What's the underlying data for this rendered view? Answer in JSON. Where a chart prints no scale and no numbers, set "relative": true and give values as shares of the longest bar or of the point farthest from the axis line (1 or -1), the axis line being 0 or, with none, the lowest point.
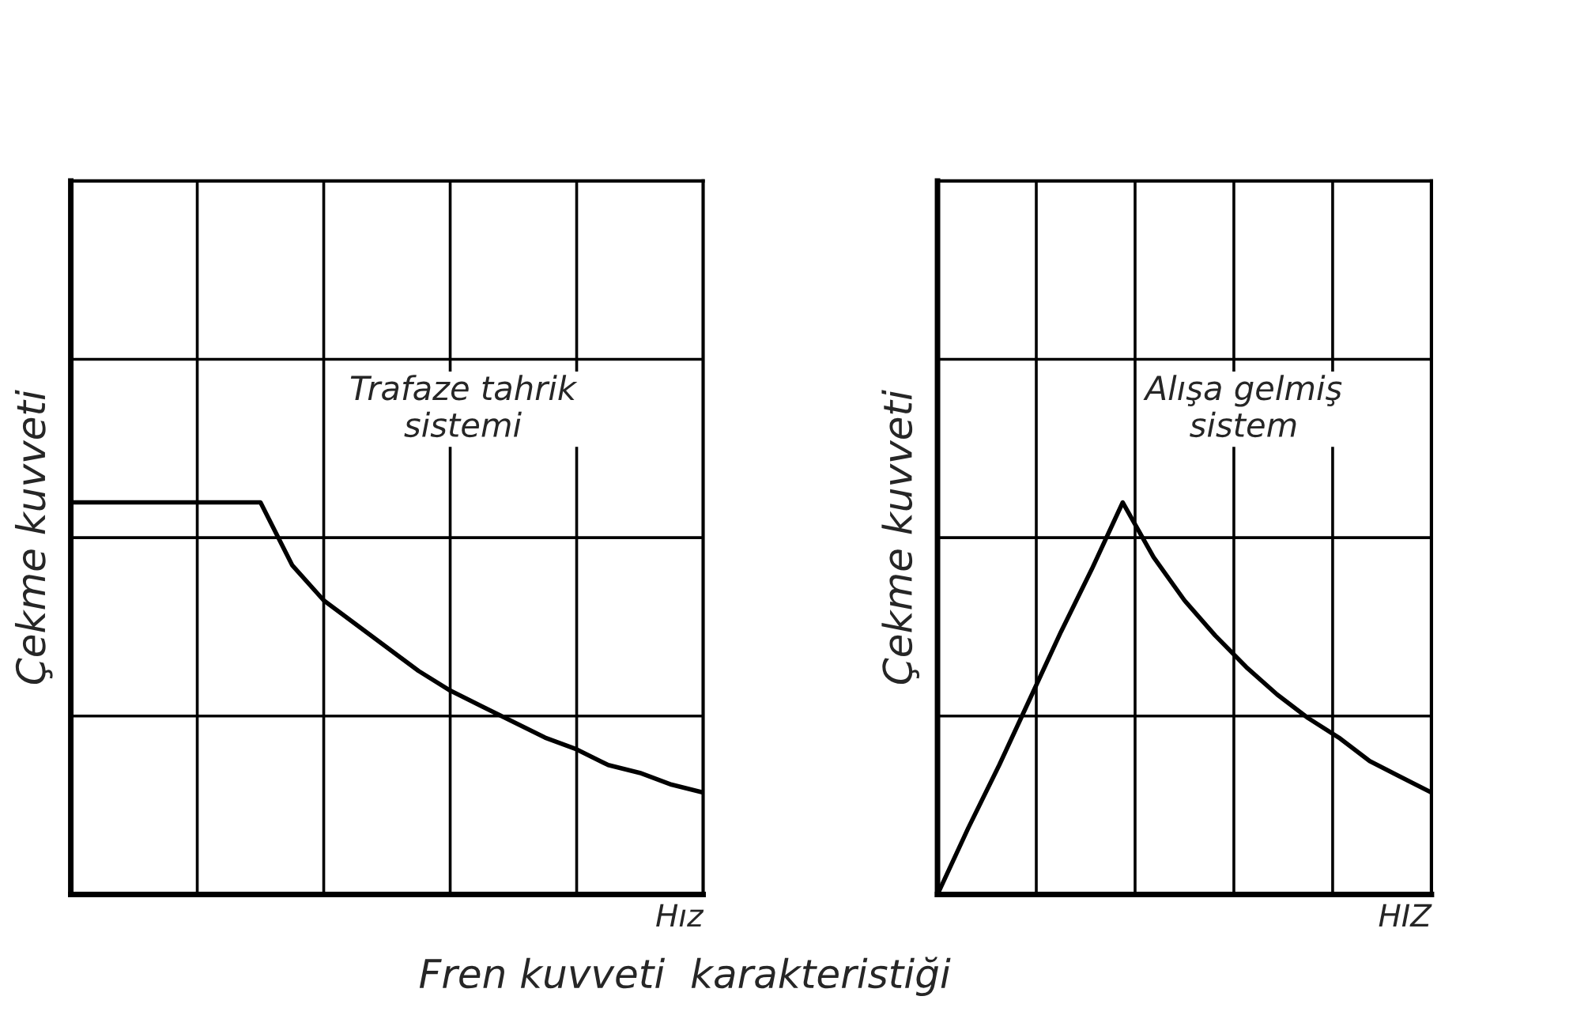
{
  "chart_data": [
    {
      "type": "line",
      "relative": true,
      "ylabel": "Çekme kuvveti",
      "xlabel": "Hız",
      "grid": true,
      "annotations": [
        "Trafaze tahrik\nsistemi",
        "Fren kuvveti  karakteristiği"
      ],
      "categories": [
        null,
        null,
        null,
        null,
        null,
        null,
        null,
        null,
        null,
        null,
        null,
        null,
        null,
        null,
        null,
        null,
        null,
        null,
        null,
        null,
        null
      ],
      "series": [
        {
          "color": "#000000",
          "values": [
            1.0,
            1.0,
            1.0,
            1.0,
            1.0,
            1.0,
            1.0,
            0.84,
            0.75,
            0.69,
            0.63,
            0.57,
            0.52,
            0.48,
            0.44,
            0.4,
            0.37,
            0.33,
            0.31,
            0.28,
            0.26
          ]
        }
      ]
    },
    {
      "type": "line",
      "relative": true,
      "ylabel": "Çekme kuvveti",
      "xlabel": "HIZ",
      "grid": true,
      "annotations": [
        "Alışa gelmiş\nsistem"
      ],
      "categories": [
        null,
        null,
        null,
        null,
        null,
        null,
        null,
        null,
        null,
        null,
        null,
        null,
        null,
        null,
        null,
        null,
        null
      ],
      "series": [
        {
          "color": "#000000",
          "values": [
            0,
            0.17,
            0.33,
            0.5,
            0.67,
            0.83,
            1.0,
            0.86,
            0.75,
            0.66,
            0.58,
            0.51,
            0.45,
            0.4,
            0.34,
            0.3,
            0.26
          ]
        }
      ]
    }
  ]
}
